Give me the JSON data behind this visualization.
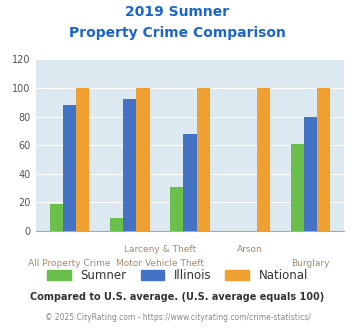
{
  "title_line1": "2019 Sumner",
  "title_line2": "Property Crime Comparison",
  "category_labels_top": [
    "",
    "Larceny & Theft",
    "",
    "Arson",
    ""
  ],
  "category_labels_bottom": [
    "All Property Crime",
    "",
    "Motor Vehicle Theft",
    "",
    "Burglary"
  ],
  "sumner": [
    19,
    9,
    31,
    0,
    61
  ],
  "illinois": [
    88,
    92,
    68,
    0,
    80
  ],
  "national": [
    100,
    100,
    100,
    100,
    100
  ],
  "sumner_color": "#6abf4b",
  "illinois_color": "#4472c4",
  "national_color": "#f0a030",
  "bg_color": "#dce9f0",
  "title_color": "#1a66cc",
  "ylabel_max": 120,
  "yticks": [
    0,
    20,
    40,
    60,
    80,
    100,
    120
  ],
  "legend_labels": [
    "Sumner",
    "Illinois",
    "National"
  ],
  "footnote1": "Compared to U.S. average. (U.S. average equals 100)",
  "footnote2": "© 2025 CityRating.com - https://www.cityrating.com/crime-statistics/",
  "footnote1_color": "#333333",
  "footnote2_color": "#888888",
  "footnote2_link_color": "#4472c4"
}
